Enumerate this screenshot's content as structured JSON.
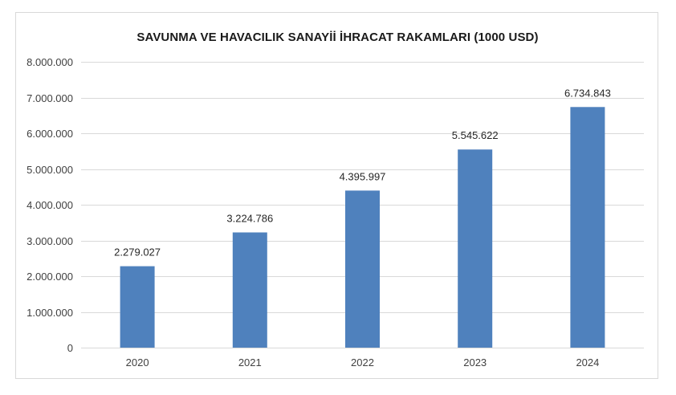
{
  "chart_data": {
    "type": "bar",
    "title": "SAVUNMA VE HAVACILIK SANAYİİ İHRACAT RAKAMLARI (1000 USD)",
    "xlabel": "",
    "ylabel": "",
    "categories": [
      "2020",
      "2021",
      "2022",
      "2023",
      "2024"
    ],
    "values": [
      2279027,
      3224786,
      4395997,
      5545622,
      6734843
    ],
    "data_labels": [
      "2.279.027",
      "3.224.786",
      "4.395.997",
      "5.545.622",
      "6.734.843"
    ],
    "ylim": [
      0,
      8000000
    ],
    "y_ticks": [
      0,
      1000000,
      2000000,
      3000000,
      4000000,
      5000000,
      6000000,
      7000000,
      8000000
    ],
    "y_tick_labels": [
      "0",
      "1.000.000",
      "2.000.000",
      "3.000.000",
      "4.000.000",
      "5.000.000",
      "6.000.000",
      "7.000.000",
      "8.000.000"
    ],
    "grid": true,
    "legend": "none",
    "bar_color": "#4f81bd",
    "grid_color": "#d9d9d9"
  }
}
